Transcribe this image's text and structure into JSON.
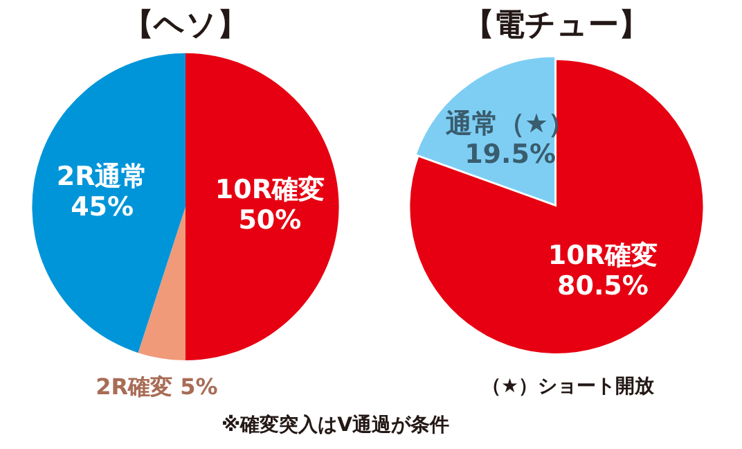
{
  "chart_data": [
    {
      "type": "pie",
      "title": "【ヘソ】",
      "categories": [
        "10R確変",
        "2R確変",
        "2R通常"
      ],
      "values": [
        50,
        5,
        45
      ],
      "value_labels": [
        "50%",
        "5%",
        "45%"
      ],
      "colors": [
        "#e60012",
        "#f09a7a",
        "#0095d9"
      ],
      "legend": false
    },
    {
      "type": "pie",
      "title": "【電チュー】",
      "categories": [
        "10R確変",
        "通常（★）"
      ],
      "values": [
        80.5,
        19.5
      ],
      "value_labels": [
        "80.5%",
        "19.5%"
      ],
      "colors": [
        "#e60012",
        "#7ecef4"
      ],
      "legend": false,
      "annotations": [
        "（★）ショート開放",
        "※確変突入はV通過が条件"
      ]
    }
  ]
}
